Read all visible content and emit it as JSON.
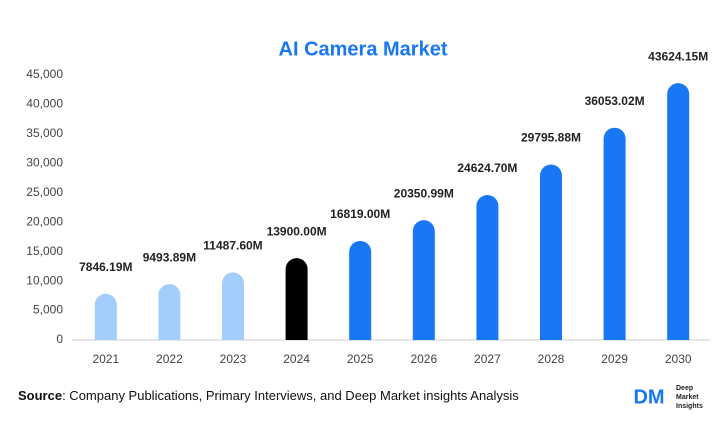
{
  "chart_data": {
    "type": "bar",
    "title": "AI Camera Market",
    "categories": [
      "2021",
      "2022",
      "2023",
      "2024",
      "2025",
      "2026",
      "2027",
      "2028",
      "2029",
      "2030"
    ],
    "values": [
      7846.19,
      9493.89,
      11487.6,
      13900.0,
      16819.0,
      20350.99,
      24624.7,
      29795.88,
      36053.02,
      43624.15
    ],
    "value_labels": [
      "7846.19M",
      "9493.89M",
      "11487.60M",
      "13900.00M",
      "16819.00M",
      "20350.99M",
      "24624.70M",
      "29795.88M",
      "36053.02M",
      "43624.15M"
    ],
    "colors": [
      "#a3cdfa",
      "#a3cdfa",
      "#a3cdfa",
      "#000000",
      "#1877f2",
      "#1877f2",
      "#1877f2",
      "#1877f2",
      "#1877f2",
      "#1877f2"
    ],
    "ylim": [
      0,
      45000
    ],
    "yticks": [
      0,
      {
        "value": 5000,
        "label": "5,000"
      },
      {
        "value": 10000,
        "label": "10,000"
      },
      {
        "value": 15000,
        "label": "15,000"
      },
      {
        "value": 20000,
        "label": "20,000"
      },
      {
        "value": 25000,
        "label": "25,000"
      },
      {
        "value": 30000,
        "label": "30,000"
      },
      {
        "value": 35000,
        "label": "35,000"
      },
      {
        "value": 40000,
        "label": "40,000"
      },
      {
        "value": 45000,
        "label": "45,000"
      }
    ],
    "grid": false
  },
  "footer": {
    "source_label": "Source",
    "source_text": ": Company Publications, Primary Interviews, and Deep Market insights Analysis"
  },
  "logo": {
    "mark": "DM",
    "line1": "Deep",
    "line2": "Market",
    "line3": "Insights"
  }
}
